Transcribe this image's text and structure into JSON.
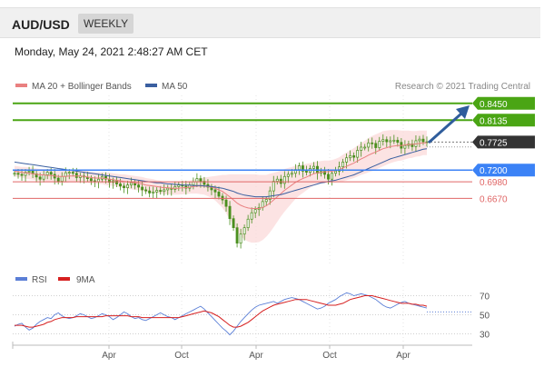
{
  "header": {
    "pair": "AUD/USD",
    "period": "WEEKLY",
    "datetime": "Monday, May 24, 2021 2:48:27 AM CET"
  },
  "legend": {
    "ma20": "MA 20 + Bollinger Bands",
    "ma50": "MA 50",
    "credit": "Research © 2021 Trading Central",
    "rsi": "RSI",
    "rsi_ma": "9MA"
  },
  "colors": {
    "ma20": "#e98080",
    "ma50": "#3a5fa0",
    "band_fill": "#fbd9d9",
    "green": "#4aa514",
    "blue_level": "#3b82f6",
    "red_level": "#e06666",
    "current": "#333333",
    "arrow": "#2f5d9c",
    "rsi": "#5b7fd6",
    "rsi_ma": "#d62020",
    "candle": "#4a8f1e"
  },
  "chart_data": [
    {
      "type": "candlestick",
      "ylim": [
        0.545,
        0.86
      ],
      "x_ticks": [
        "Apr",
        "Oct",
        "Apr",
        "Oct",
        "Apr"
      ],
      "levels": [
        {
          "value": 0.845,
          "label": "0.8450",
          "style": "resistance"
        },
        {
          "value": 0.8135,
          "label": "0.8135",
          "style": "resistance"
        },
        {
          "value": 0.7725,
          "label": "0.7725",
          "style": "current"
        },
        {
          "value": 0.72,
          "label": "0.7200",
          "style": "pivot"
        },
        {
          "value": 0.698,
          "label": "0.6980",
          "style": "support"
        },
        {
          "value": 0.667,
          "label": "0.6670",
          "style": "support"
        }
      ],
      "close": [
        0.714,
        0.712,
        0.71,
        0.716,
        0.718,
        0.713,
        0.707,
        0.703,
        0.711,
        0.716,
        0.712,
        0.705,
        0.699,
        0.708,
        0.715,
        0.716,
        0.714,
        0.706,
        0.709,
        0.707,
        0.704,
        0.7,
        0.698,
        0.703,
        0.708,
        0.703,
        0.697,
        0.7,
        0.694,
        0.69,
        0.687,
        0.692,
        0.696,
        0.692,
        0.688,
        0.683,
        0.681,
        0.677,
        0.679,
        0.682,
        0.68,
        0.683,
        0.686,
        0.684,
        0.689,
        0.692,
        0.69,
        0.686,
        0.692,
        0.698,
        0.704,
        0.699,
        0.693,
        0.688,
        0.683,
        0.679,
        0.671,
        0.664,
        0.652,
        0.629,
        0.612,
        0.583,
        0.6,
        0.612,
        0.628,
        0.64,
        0.646,
        0.65,
        0.661,
        0.665,
        0.681,
        0.699,
        0.703,
        0.695,
        0.708,
        0.712,
        0.714,
        0.721,
        0.728,
        0.718,
        0.716,
        0.723,
        0.727,
        0.714,
        0.718,
        0.712,
        0.703,
        0.714,
        0.718,
        0.726,
        0.735,
        0.743,
        0.747,
        0.744,
        0.757,
        0.763,
        0.763,
        0.771,
        0.77,
        0.762,
        0.774,
        0.777,
        0.773,
        0.775,
        0.776,
        0.772,
        0.761,
        0.766,
        0.769,
        0.764,
        0.775,
        0.778,
        0.773,
        0.7725
      ],
      "ma20": [
        0.718,
        0.717,
        0.716,
        0.715,
        0.714,
        0.713,
        0.712,
        0.711,
        0.711,
        0.71,
        0.71,
        0.709,
        0.708,
        0.708,
        0.708,
        0.709,
        0.709,
        0.709,
        0.709,
        0.708,
        0.707,
        0.706,
        0.705,
        0.705,
        0.705,
        0.704,
        0.703,
        0.702,
        0.701,
        0.7,
        0.699,
        0.698,
        0.697,
        0.696,
        0.695,
        0.694,
        0.692,
        0.691,
        0.69,
        0.689,
        0.688,
        0.687,
        0.687,
        0.686,
        0.686,
        0.686,
        0.687,
        0.687,
        0.688,
        0.689,
        0.69,
        0.69,
        0.69,
        0.689,
        0.688,
        0.686,
        0.683,
        0.68,
        0.675,
        0.67,
        0.664,
        0.658,
        0.654,
        0.651,
        0.649,
        0.648,
        0.648,
        0.648,
        0.65,
        0.653,
        0.658,
        0.664,
        0.67,
        0.676,
        0.682,
        0.687,
        0.692,
        0.697,
        0.701,
        0.704,
        0.707,
        0.71,
        0.713,
        0.715,
        0.716,
        0.717,
        0.717,
        0.718,
        0.719,
        0.721,
        0.724,
        0.727,
        0.73,
        0.733,
        0.737,
        0.741,
        0.744,
        0.748,
        0.751,
        0.754,
        0.757,
        0.76,
        0.762,
        0.764,
        0.765,
        0.766,
        0.766,
        0.767,
        0.768,
        0.768,
        0.769,
        0.77,
        0.771,
        0.771
      ],
      "ma50": [
        0.735,
        0.734,
        0.733,
        0.732,
        0.731,
        0.73,
        0.729,
        0.728,
        0.727,
        0.726,
        0.725,
        0.724,
        0.723,
        0.722,
        0.721,
        0.72,
        0.719,
        0.718,
        0.717,
        0.716,
        0.715,
        0.714,
        0.713,
        0.712,
        0.711,
        0.71,
        0.709,
        0.708,
        0.707,
        0.706,
        0.705,
        0.704,
        0.703,
        0.702,
        0.701,
        0.7,
        0.699,
        0.698,
        0.697,
        0.696,
        0.696,
        0.695,
        0.694,
        0.694,
        0.693,
        0.693,
        0.692,
        0.692,
        0.692,
        0.691,
        0.691,
        0.691,
        0.69,
        0.69,
        0.689,
        0.688,
        0.687,
        0.686,
        0.684,
        0.682,
        0.68,
        0.677,
        0.675,
        0.673,
        0.672,
        0.671,
        0.67,
        0.67,
        0.67,
        0.67,
        0.671,
        0.672,
        0.673,
        0.674,
        0.676,
        0.678,
        0.68,
        0.682,
        0.684,
        0.686,
        0.688,
        0.69,
        0.692,
        0.694,
        0.696,
        0.697,
        0.699,
        0.7,
        0.701,
        0.703,
        0.705,
        0.707,
        0.709,
        0.711,
        0.714,
        0.717,
        0.72,
        0.723,
        0.726,
        0.729,
        0.732,
        0.735,
        0.738,
        0.741,
        0.743,
        0.745,
        0.747,
        0.749,
        0.751,
        0.753,
        0.755,
        0.757,
        0.759,
        0.76
      ],
      "band_width": [
        0.01,
        0.01,
        0.01,
        0.011,
        0.011,
        0.011,
        0.011,
        0.011,
        0.011,
        0.012,
        0.012,
        0.012,
        0.012,
        0.012,
        0.012,
        0.012,
        0.012,
        0.012,
        0.011,
        0.011,
        0.011,
        0.011,
        0.011,
        0.011,
        0.011,
        0.012,
        0.012,
        0.012,
        0.012,
        0.012,
        0.013,
        0.013,
        0.013,
        0.013,
        0.013,
        0.013,
        0.013,
        0.013,
        0.013,
        0.012,
        0.012,
        0.012,
        0.012,
        0.012,
        0.012,
        0.012,
        0.012,
        0.012,
        0.012,
        0.013,
        0.014,
        0.015,
        0.016,
        0.018,
        0.02,
        0.023,
        0.027,
        0.031,
        0.036,
        0.042,
        0.048,
        0.054,
        0.058,
        0.061,
        0.063,
        0.064,
        0.064,
        0.063,
        0.061,
        0.058,
        0.055,
        0.051,
        0.047,
        0.043,
        0.04,
        0.037,
        0.034,
        0.031,
        0.029,
        0.027,
        0.025,
        0.023,
        0.022,
        0.021,
        0.021,
        0.021,
        0.021,
        0.021,
        0.022,
        0.023,
        0.025,
        0.026,
        0.027,
        0.028,
        0.029,
        0.03,
        0.031,
        0.032,
        0.033,
        0.033,
        0.033,
        0.033,
        0.032,
        0.031,
        0.03,
        0.029,
        0.028,
        0.027,
        0.026,
        0.025,
        0.024,
        0.024,
        0.023,
        0.023
      ]
    },
    {
      "type": "line",
      "title": "RSI",
      "y_ticks": [
        70,
        50,
        30
      ],
      "ylim": [
        20,
        80
      ],
      "series": [
        {
          "name": "RSI",
          "values": [
            38,
            40,
            41,
            37,
            34,
            36,
            40,
            43,
            45,
            47,
            46,
            50,
            52,
            49,
            47,
            46,
            47,
            49,
            51,
            50,
            48,
            46,
            47,
            49,
            51,
            50,
            48,
            45,
            47,
            50,
            53,
            51,
            48,
            46,
            47,
            45,
            44,
            46,
            48,
            50,
            52,
            50,
            48,
            47,
            45,
            47,
            49,
            51,
            53,
            55,
            57,
            59,
            56,
            52,
            48,
            44,
            40,
            36,
            33,
            29,
            33,
            38,
            43,
            47,
            51,
            55,
            58,
            60,
            61,
            62,
            63,
            64,
            62,
            64,
            66,
            67,
            68,
            67,
            66,
            64,
            62,
            60,
            58,
            56,
            57,
            59,
            62,
            64,
            66,
            69,
            71,
            73,
            72,
            70,
            71,
            72,
            71,
            70,
            68,
            66,
            63,
            60,
            58,
            57,
            59,
            61,
            63,
            64,
            62,
            61,
            60,
            59,
            58,
            57
          ]
        },
        {
          "name": "9MA",
          "values": [
            39,
            39,
            39,
            38,
            37,
            37,
            38,
            39,
            40,
            42,
            43,
            45,
            46,
            47,
            47,
            47,
            47,
            48,
            48,
            48,
            48,
            48,
            48,
            48,
            48,
            49,
            49,
            49,
            49,
            49,
            49,
            49,
            48,
            48,
            48,
            47,
            47,
            47,
            47,
            47,
            47,
            47,
            47,
            47,
            47,
            47,
            48,
            49,
            50,
            51,
            52,
            53,
            54,
            53,
            52,
            50,
            48,
            45,
            42,
            39,
            37,
            37,
            38,
            40,
            42,
            45,
            48,
            51,
            54,
            56,
            58,
            60,
            61,
            62,
            63,
            64,
            65,
            66,
            66,
            66,
            66,
            65,
            64,
            63,
            62,
            61,
            60,
            60,
            60,
            61,
            62,
            64,
            66,
            67,
            68,
            69,
            70,
            70,
            70,
            69,
            68,
            67,
            66,
            65,
            64,
            63,
            62,
            62,
            62,
            61,
            61,
            60,
            60,
            59
          ]
        }
      ]
    }
  ]
}
